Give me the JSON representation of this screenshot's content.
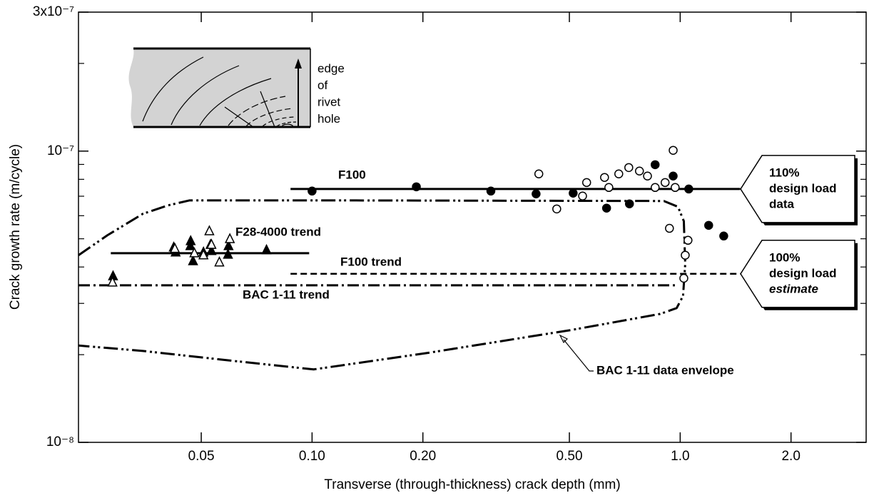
{
  "chart_data": {
    "type": "scatter",
    "xscale": "log",
    "yscale": "log",
    "xlabel": "Transverse (through-thickness) crack depth (mm)",
    "ylabel": "Crack growth rate (m/cycle)",
    "xlim": [
      0.0232,
      3.2
    ],
    "ylim": [
      1e-08,
      3e-07
    ],
    "xticks": [
      0.05,
      {
        "value": 0.1,
        "label": "0.10"
      },
      {
        "value": 0.2,
        "label": "0.20"
      },
      {
        "value": 0.5,
        "label": "0.50"
      },
      {
        "value": 1,
        "label": "1.0"
      },
      {
        "value": 2,
        "label": "2.0"
      }
    ],
    "yticks": [
      {
        "value": 3e-07,
        "label": "3x10⁻⁷"
      },
      {
        "value": 1e-07,
        "label": "10⁻⁷"
      },
      {
        "value": 1e-08,
        "label": "10⁻⁸"
      }
    ],
    "yminorticks": [
      2e-08,
      3e-08,
      4e-08,
      5e-08,
      6e-08,
      7e-08,
      8e-08,
      9e-08,
      2e-07
    ],
    "series": [
      {
        "name": "F100",
        "mode": "line",
        "style": "solid",
        "color": "#000000",
        "x": [
          0.0874,
          1.455
        ],
        "values": [
          7.41e-08,
          7.41e-08
        ]
      },
      {
        "name": "F28-4000 trend",
        "mode": "line",
        "style": "solid",
        "color": "#000000",
        "x": [
          0.0284,
          0.0982
        ],
        "values": [
          4.46e-08,
          4.46e-08
        ]
      },
      {
        "name": "F100 trend",
        "mode": "line",
        "style": "dashed",
        "color": "#000000",
        "x": [
          0.0874,
          1.455
        ],
        "values": [
          3.79e-08,
          3.79e-08
        ]
      },
      {
        "name": "BAC 1-11 trend",
        "mode": "line",
        "style": "dashdot",
        "color": "#000000",
        "x": [
          0.0232,
          0.978
        ],
        "values": [
          3.46e-08,
          3.46e-08
        ]
      },
      {
        "name": "BAC 1-11 data envelope",
        "mode": "line",
        "style": "dashdotdot",
        "color": "#000000",
        "x": [
          0.0232,
          0.0278,
          0.0347,
          0.0406,
          0.0464,
          0.132,
          0.903,
          0.986,
          1.023,
          1.032,
          1.018,
          0.978,
          0.882,
          0.505,
          0.207,
          0.101,
          0.0621,
          0.0347,
          0.0232
        ],
        "values": [
          4.39e-08,
          5.14e-08,
          6.09e-08,
          6.51e-08,
          6.77e-08,
          6.77e-08,
          6.74e-08,
          6.44e-08,
          5.75e-08,
          4.1e-08,
          3.18e-08,
          2.89e-08,
          2.76e-08,
          2.43e-08,
          2.03e-08,
          1.78e-08,
          1.9e-08,
          2.06e-08,
          2.15e-08
        ]
      },
      {
        "mode": "markers",
        "marker": "filled-circle",
        "color": "#000000",
        "x": [
          0.1,
          0.192,
          0.306,
          0.406,
          0.512,
          0.631,
          0.728,
          0.855,
          0.957,
          1.055,
          1.195,
          1.313
        ],
        "values": [
          7.29e-08,
          7.54e-08,
          7.29e-08,
          7.13e-08,
          7.17e-08,
          6.37e-08,
          6.59e-08,
          8.98e-08,
          8.21e-08,
          7.41e-08,
          5.56e-08,
          5.11e-08
        ]
      },
      {
        "mode": "markers",
        "marker": "open-circle",
        "color": "#000000",
        "x": [
          0.413,
          0.462,
          0.543,
          0.557,
          0.623,
          0.64,
          0.681,
          0.725,
          0.775,
          0.815,
          0.855,
          0.91,
          0.957,
          0.969,
          0.935,
          1.05,
          1.032,
          1.023
        ],
        "values": [
          8.35e-08,
          6.33e-08,
          7.01e-08,
          7.8e-08,
          8.12e-08,
          7.5e-08,
          8.35e-08,
          8.78e-08,
          8.54e-08,
          8.21e-08,
          7.5e-08,
          7.8e-08,
          1.006e-07,
          7.5e-08,
          5.43e-08,
          4.94e-08,
          4.39e-08,
          3.66e-08
        ]
      },
      {
        "mode": "markers",
        "marker": "filled-triangle",
        "color": "#000000",
        "x": [
          0.0288,
          0.0421,
          0.0426,
          0.0468,
          0.0467,
          0.0475,
          0.0507,
          0.0533,
          0.053,
          0.0593,
          0.0591,
          0.0752
        ],
        "values": [
          3.72e-08,
          4.67e-08,
          4.49e-08,
          4.91e-08,
          4.72e-08,
          4.19e-08,
          4.49e-08,
          4.54e-08,
          4.77e-08,
          4.72e-08,
          4.41e-08,
          4.57e-08
        ]
      },
      {
        "mode": "markers",
        "marker": "open-triangle",
        "color": "#000000",
        "x": [
          0.0287,
          0.0424,
          0.0479,
          0.0507,
          0.0526,
          0.0533,
          0.056,
          0.0598
        ],
        "values": [
          3.54e-08,
          4.62e-08,
          4.46e-08,
          4.39e-08,
          5.31e-08,
          4.77e-08,
          4.15e-08,
          4.99e-08
        ]
      }
    ],
    "inset_text": [
      "edge",
      "of",
      "rivet",
      "hole"
    ],
    "callouts": [
      {
        "lines": [
          "110%",
          "design load",
          "data"
        ]
      },
      {
        "lines": [
          "100%",
          "design load",
          "estimate"
        ]
      }
    ]
  }
}
